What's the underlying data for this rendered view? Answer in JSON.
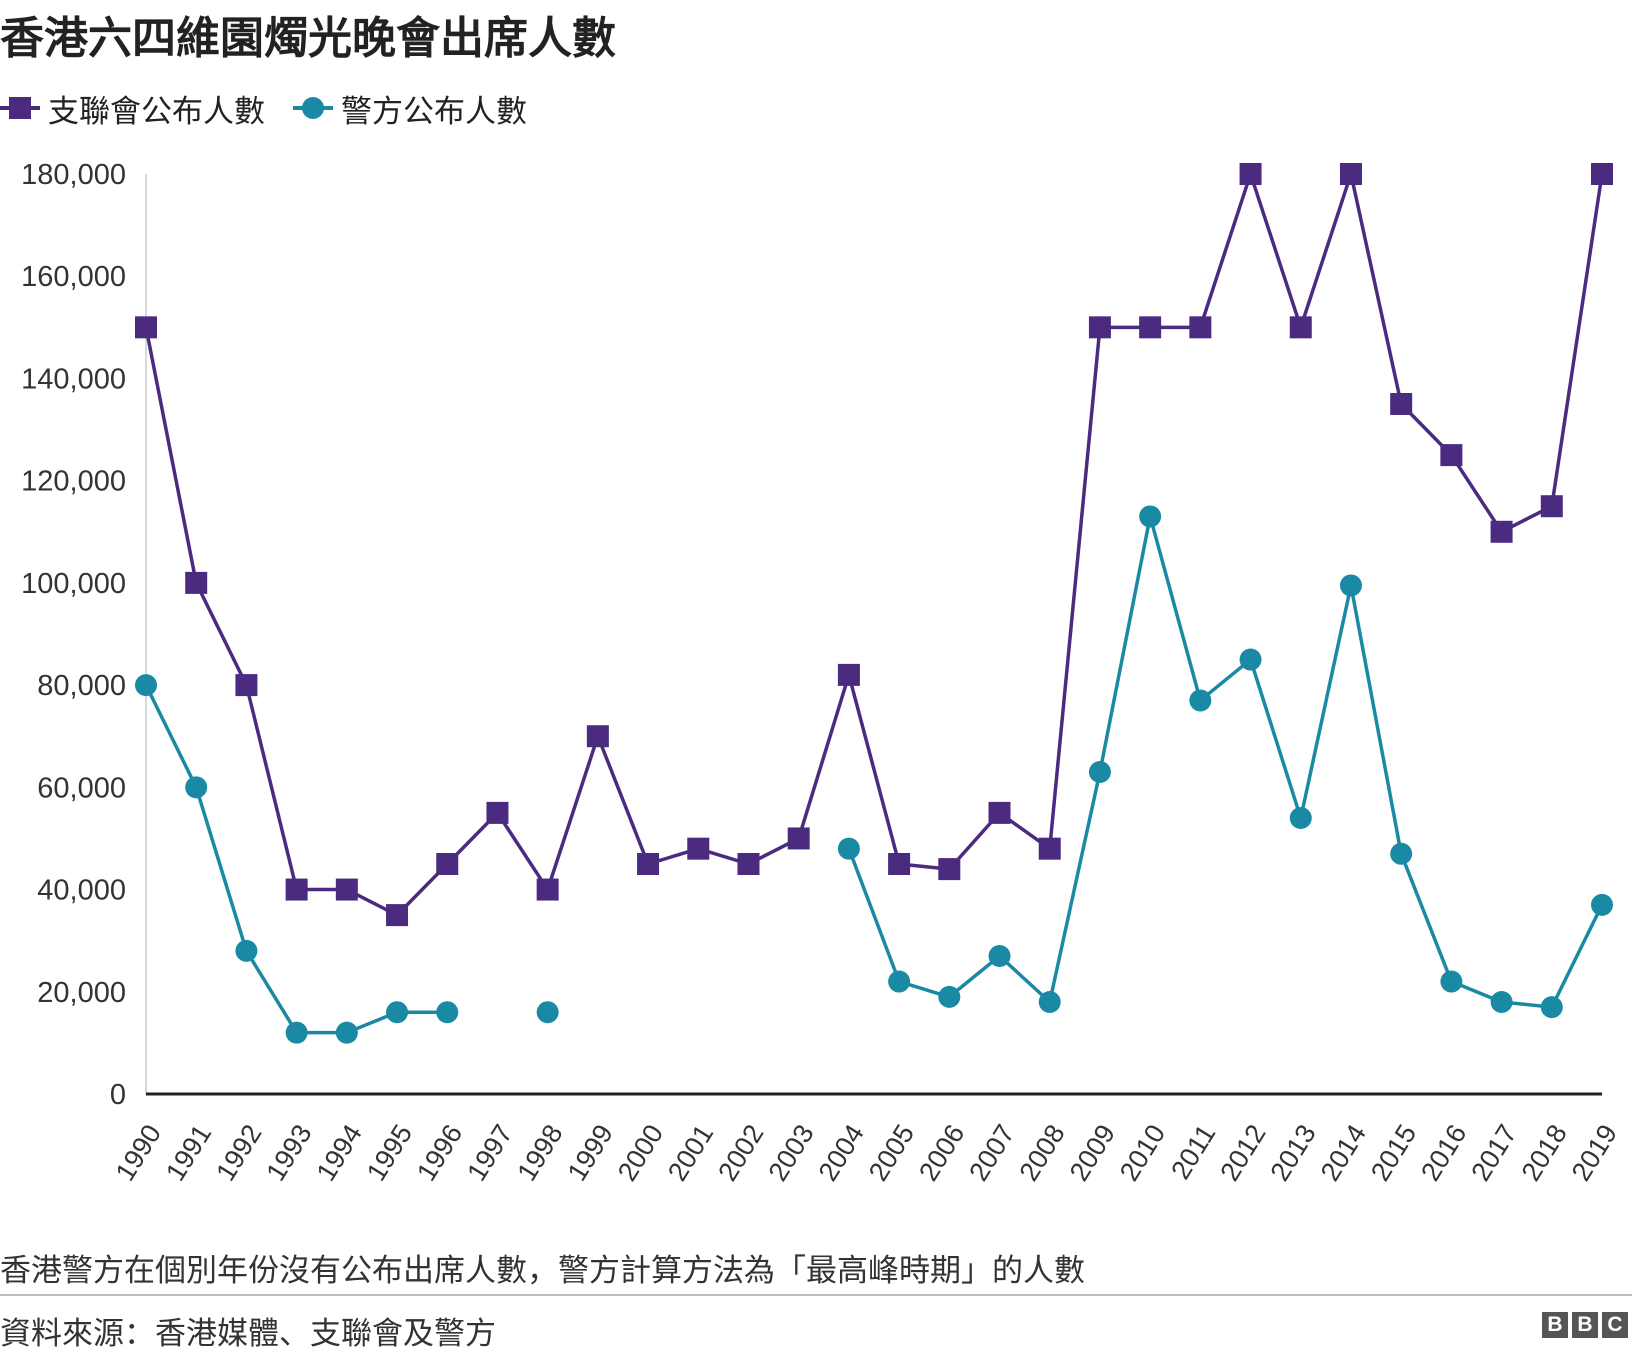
{
  "title": "香港六四維園燭光晚會出席人數",
  "note": "香港警方在個別年份沒有公布出席人數，警方計算方法為「最高峰時期」的人數",
  "source": "資料來源：香港媒體、支聯會及警方",
  "logo": [
    "B",
    "B",
    "C"
  ],
  "colors": {
    "alliance": "#4b2b7f",
    "police": "#1a8aa4",
    "axis": "#222222",
    "gridline": "#cccccc"
  },
  "chart_data": {
    "type": "line",
    "title": "香港六四維園燭光晚會出席人數",
    "x": [
      "1990",
      "1991",
      "1992",
      "1993",
      "1994",
      "1995",
      "1996",
      "1997",
      "1998",
      "1999",
      "2000",
      "2001",
      "2002",
      "2003",
      "2004",
      "2005",
      "2006",
      "2007",
      "2008",
      "2009",
      "2010",
      "2011",
      "2012",
      "2013",
      "2014",
      "2015",
      "2016",
      "2017",
      "2018",
      "2019"
    ],
    "series": [
      {
        "name": "支聯會公布人數",
        "marker": "square",
        "values": [
          150000,
          100000,
          80000,
          40000,
          40000,
          35000,
          45000,
          55000,
          40000,
          70000,
          45000,
          48000,
          45000,
          50000,
          82000,
          45000,
          44000,
          55000,
          48000,
          150000,
          150000,
          150000,
          180000,
          150000,
          180000,
          135000,
          125000,
          110000,
          115000,
          180000
        ]
      },
      {
        "name": "警方公布人數",
        "marker": "circle",
        "values": [
          80000,
          60000,
          28000,
          12000,
          12000,
          16000,
          16000,
          null,
          16000,
          null,
          null,
          null,
          null,
          null,
          48000,
          22000,
          19000,
          27000,
          18000,
          63000,
          113000,
          77000,
          85000,
          54000,
          99500,
          47000,
          22000,
          18000,
          17000,
          37000
        ]
      }
    ],
    "ylim": [
      0,
      180000
    ],
    "yticks": [
      0,
      20000,
      40000,
      60000,
      80000,
      100000,
      120000,
      140000,
      160000,
      180000
    ],
    "ytick_labels": [
      "0",
      "20,000",
      "40,000",
      "60,000",
      "80,000",
      "100,000",
      "120,000",
      "140,000",
      "160,000",
      "180,000"
    ],
    "xlabel": "",
    "ylabel": "",
    "legend": "top-left",
    "grid": false
  }
}
